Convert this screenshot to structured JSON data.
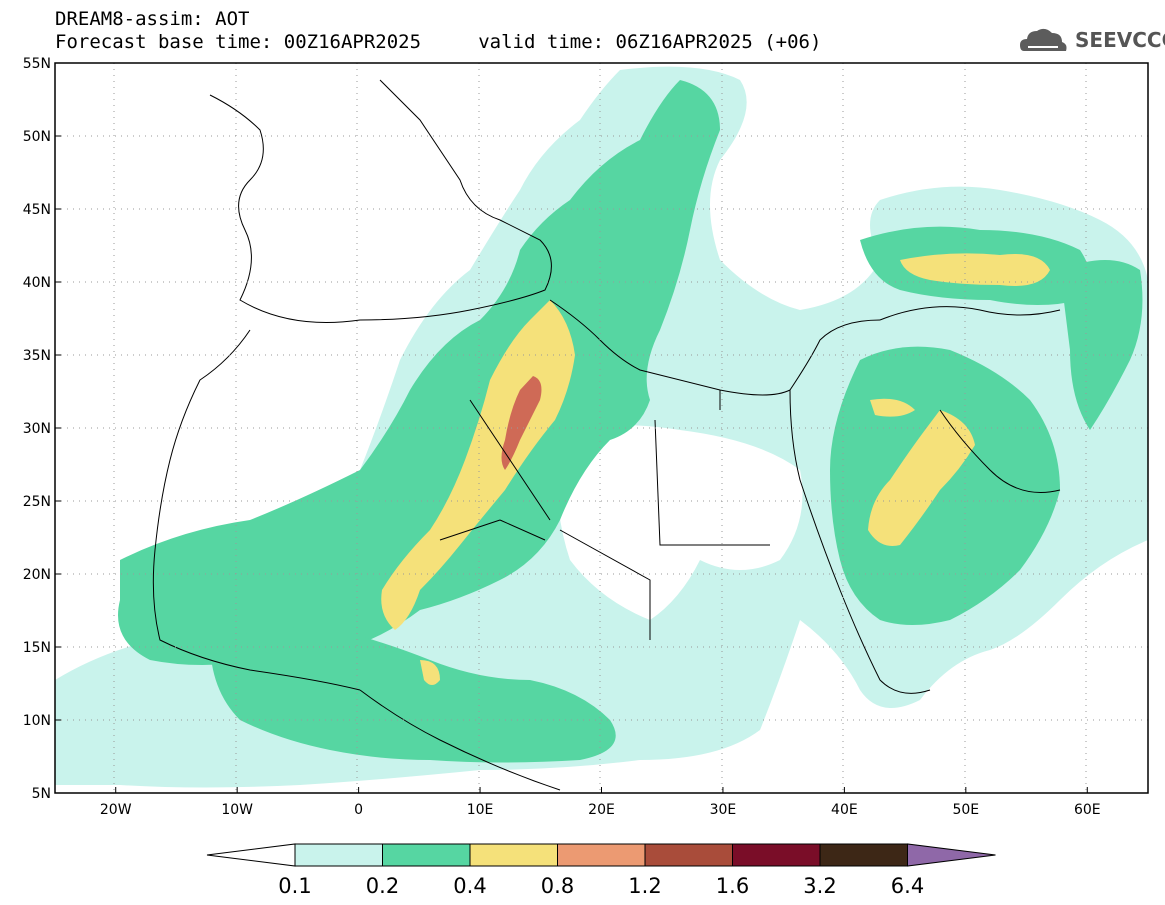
{
  "header": {
    "title_line1": "DREAM8-assim: AOT",
    "title_line2": "Forecast base time: 00Z16APR2025     valid time: 06Z16APR2025 (+06)"
  },
  "logo": {
    "text": "SEEVCCC",
    "icon": "cloud-icon"
  },
  "axes": {
    "lat_labels": [
      "55N",
      "50N",
      "45N",
      "40N",
      "35N",
      "30N",
      "25N",
      "20N",
      "15N",
      "10N",
      "5N"
    ],
    "lon_labels": [
      "20W",
      "10W",
      "0",
      "10E",
      "20E",
      "30E",
      "40E",
      "50E",
      "60E"
    ],
    "lat_values": [
      55,
      50,
      45,
      40,
      35,
      30,
      25,
      20,
      15,
      10,
      5
    ],
    "lon_values": [
      -20,
      -10,
      0,
      10,
      20,
      30,
      40,
      50,
      60
    ],
    "lon_range": [
      -25,
      65
    ],
    "lat_range": [
      5,
      55
    ]
  },
  "colorbar": {
    "labels": [
      "0.1",
      "0.2",
      "0.4",
      "0.8",
      "1.2",
      "1.6",
      "3.2",
      "6.4"
    ],
    "colors": [
      "#c9f3ec",
      "#56d6a2",
      "#f5e17a",
      "#ec9a72",
      "#a94c3a",
      "#7a0d28",
      "#3d2716",
      "#8f68a8"
    ],
    "under_color": "#ffffff",
    "over_color": "#8f68a8"
  },
  "map_colors": {
    "light": "#c9f3ec",
    "medium": "#56d6a2",
    "yellow": "#f5e17a",
    "red": "#cf6a56"
  }
}
